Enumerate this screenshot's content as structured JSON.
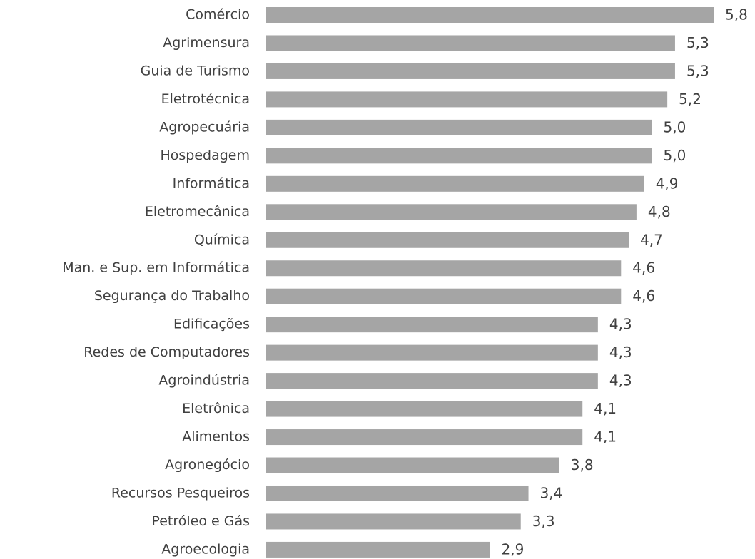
{
  "chart_data": {
    "type": "bar",
    "orientation": "horizontal",
    "categories": [
      "Comércio",
      "Agrimensura",
      "Guia de Turismo",
      "Eletrotécnica",
      "Agropecuária",
      "Hospedagem",
      "Informática",
      "Eletromecânica",
      "Química",
      "Man. e Sup. em Informática",
      "Segurança do Trabalho",
      "Edificações",
      "Redes de Computadores",
      "Agroindústria",
      "Eletrônica",
      "Alimentos",
      "Agronegócio",
      "Recursos Pesqueiros",
      "Petróleo e Gás",
      "Agroecologia"
    ],
    "values": [
      5.8,
      5.3,
      5.3,
      5.2,
      5.0,
      5.0,
      4.9,
      4.8,
      4.7,
      4.6,
      4.6,
      4.3,
      4.3,
      4.3,
      4.1,
      4.1,
      3.8,
      3.4,
      3.3,
      2.9
    ],
    "value_labels": [
      "5,8",
      "5,3",
      "5,3",
      "5,2",
      "5,0",
      "5,0",
      "4,9",
      "4,8",
      "4,7",
      "4,6",
      "4,6",
      "4,3",
      "4,3",
      "4,3",
      "4,1",
      "4,1",
      "3,8",
      "3,4",
      "3,3",
      "2,9"
    ],
    "color": "#a5a5a5"
  }
}
